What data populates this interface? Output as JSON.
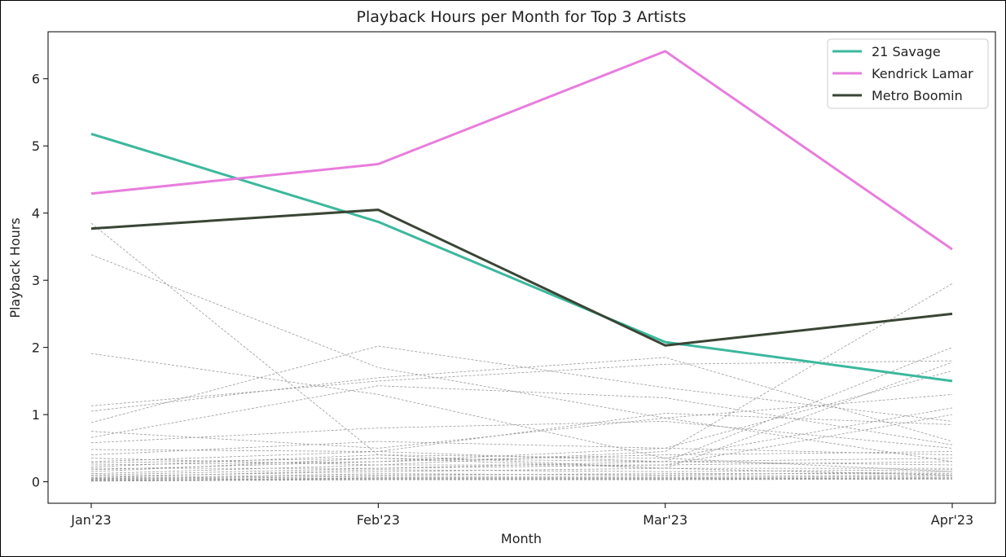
{
  "chart_data": {
    "type": "line",
    "title": "Playback Hours per Month for Top 3 Artists",
    "xlabel": "Month",
    "ylabel": "Playback Hours",
    "categories": [
      "Jan'23",
      "Feb'23",
      "Mar'23",
      "Apr'23"
    ],
    "ylim": [
      -0.32,
      6.7
    ],
    "yticks": [
      0,
      1,
      2,
      3,
      4,
      5,
      6
    ],
    "grid": false,
    "legend_position": "top-right",
    "series": [
      {
        "name": "21 Savage",
        "color": "#3bb89d",
        "values": [
          5.18,
          3.87,
          2.08,
          1.5
        ]
      },
      {
        "name": "Kendrick Lamar",
        "color": "#e87ddd",
        "values": [
          4.29,
          4.73,
          6.41,
          3.46
        ]
      },
      {
        "name": "Metro Boomin",
        "color": "#3a4535",
        "values": [
          3.77,
          4.05,
          2.03,
          2.5
        ]
      }
    ],
    "background_series": {
      "color": "#9a9a9a",
      "style": "dashed",
      "values": [
        [
          3.85,
          0.4,
          0.2,
          0.1
        ],
        [
          3.38,
          1.7,
          0.95,
          0.3
        ],
        [
          1.91,
          1.3,
          0.35,
          0.15
        ],
        [
          1.13,
          1.5,
          1.75,
          1.8
        ],
        [
          1.05,
          1.55,
          1.85,
          0.6
        ],
        [
          0.88,
          2.02,
          1.4,
          0.9
        ],
        [
          0.75,
          0.5,
          0.95,
          1.3
        ],
        [
          0.66,
          1.43,
          1.25,
          0.55
        ],
        [
          0.58,
          0.8,
          0.9,
          0.5
        ],
        [
          0.48,
          0.45,
          1.02,
          0.85
        ],
        [
          0.4,
          0.6,
          0.5,
          0.4
        ],
        [
          0.35,
          0.25,
          0.45,
          2.95
        ],
        [
          0.3,
          0.45,
          0.3,
          2.0
        ],
        [
          0.28,
          0.35,
          0.2,
          1.78
        ],
        [
          0.25,
          0.3,
          0.5,
          1.65
        ],
        [
          0.22,
          0.4,
          0.35,
          1.1
        ],
        [
          0.2,
          0.2,
          0.25,
          1.0
        ],
        [
          0.18,
          0.3,
          0.4,
          0.45
        ],
        [
          0.15,
          0.35,
          0.3,
          0.35
        ],
        [
          0.12,
          0.25,
          0.25,
          0.3
        ],
        [
          0.1,
          0.2,
          0.3,
          0.25
        ],
        [
          0.08,
          0.15,
          0.2,
          0.2
        ],
        [
          0.06,
          0.18,
          0.15,
          0.18
        ],
        [
          0.05,
          0.12,
          0.1,
          0.15
        ],
        [
          0.04,
          0.1,
          0.12,
          0.12
        ],
        [
          0.03,
          0.08,
          0.08,
          0.1
        ],
        [
          0.02,
          0.06,
          0.06,
          0.08
        ],
        [
          0.02,
          0.05,
          0.05,
          0.06
        ],
        [
          0.01,
          0.04,
          0.04,
          0.05
        ],
        [
          0.01,
          0.03,
          0.03,
          0.04
        ]
      ]
    }
  }
}
